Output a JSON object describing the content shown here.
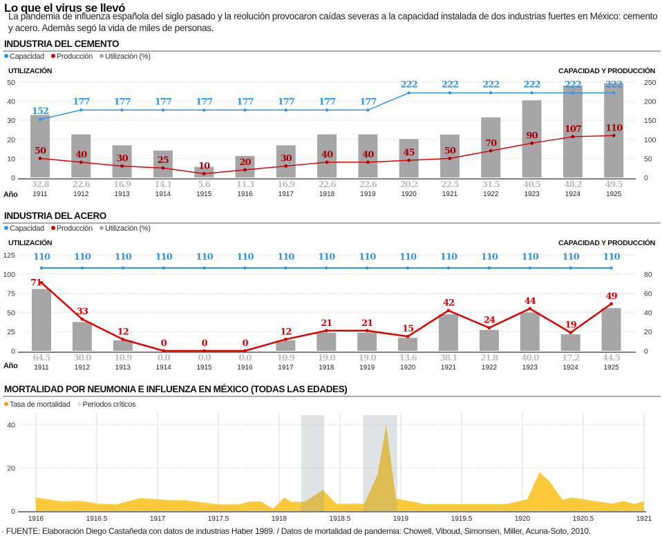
{
  "header": {
    "title": "Lo que el virus se llevó",
    "subtitle": "La pandemia de influenza española del siglo pasado y la reolución provocaron caídas severas a la capacidad instalada de dos industrias fuertes en México: cemento y acero.  Además segó la vida de miles de personas."
  },
  "colors": {
    "capacity": "#2b95ee",
    "production": "#e00000",
    "production_label_cement": "#a80000",
    "utilization": "#a6a6a6",
    "mortality": "#fcc93a",
    "critical": "#dde2e2"
  },
  "chart_data": [
    {
      "type": "bar+line",
      "title": "INDUSTRIA DEL CEMENTO",
      "legend": [
        "Capacidad",
        "Producción",
        "Utilización (%)"
      ],
      "ylabel_left": "UTILIZACIÓN",
      "ylabel_right": "CAPACIDAD Y PRODUCCIÓN",
      "xlabel": "Año",
      "ylim_left": [
        0,
        50
      ],
      "yticks_left": [
        0,
        10,
        20,
        30,
        40,
        50
      ],
      "ylim_right": [
        0,
        250
      ],
      "yticks_right": [
        0,
        50,
        100,
        150,
        200,
        250
      ],
      "categories": [
        "1911",
        "1912",
        "1913",
        "1914",
        "1915",
        "1916",
        "1917",
        "1918",
        "1919",
        "1920",
        "1921",
        "1922",
        "1923",
        "1924",
        "1925"
      ],
      "series": [
        {
          "name": "Capacidad",
          "axis": "right",
          "values": [
            152,
            177,
            177,
            177,
            177,
            177,
            177,
            177,
            177,
            222,
            222,
            222,
            222,
            222,
            222
          ]
        },
        {
          "name": "Producción",
          "axis": "right",
          "values": [
            50,
            40,
            30,
            25,
            10,
            20,
            30,
            40,
            40,
            45,
            50,
            70,
            90,
            107,
            110
          ]
        },
        {
          "name": "Utilización (%)",
          "axis": "left",
          "values": [
            32.8,
            22.6,
            16.9,
            14.1,
            5.6,
            11.3,
            16.9,
            22.6,
            22.6,
            20.2,
            22.5,
            31.5,
            40.5,
            48.2,
            49.5
          ]
        }
      ],
      "utilization_labels": [
        "32.8",
        "22.6",
        "16.9",
        "14.1",
        "5.6",
        "11.3",
        "16.9",
        "22.6",
        "22.6",
        "20.2",
        "22.5",
        "31.5",
        "40.5",
        "48.2",
        "49.5"
      ]
    },
    {
      "type": "bar+line",
      "title": "INDUSTRIA DEL ACERO",
      "legend": [
        "Capacidad",
        "Producción",
        "Utilización (%)"
      ],
      "ylabel_left": "UTILIZACIÓN",
      "ylabel_right": "CAPACIDAD Y PRODUCCIÓN",
      "xlabel": "Año",
      "ylim_left": [
        0,
        125
      ],
      "yticks_left": [
        0,
        25,
        50,
        75,
        100,
        125
      ],
      "ylim_right": [
        0,
        100
      ],
      "yticks_right": [
        0,
        20,
        40,
        60,
        80
      ],
      "categories": [
        "1911",
        "1912",
        "1913",
        "1914",
        "1915",
        "1916",
        "1917",
        "1918",
        "1919",
        "1920",
        "1921",
        "1922",
        "1923",
        "1924",
        "1925"
      ],
      "series": [
        {
          "name": "Capacidad",
          "axis": "right",
          "values": [
            110,
            110,
            110,
            110,
            110,
            110,
            110,
            110,
            110,
            110,
            110,
            110,
            110,
            110,
            110
          ]
        },
        {
          "name": "Producción",
          "axis": "right",
          "values": [
            71,
            33,
            12,
            0,
            0,
            0,
            12,
            21,
            21,
            15,
            42,
            24,
            44,
            19,
            49
          ]
        },
        {
          "name": "Utilización (%)",
          "axis": "right",
          "values": [
            64.5,
            30.0,
            10.9,
            0.0,
            0.0,
            0.0,
            10.9,
            19.0,
            19.0,
            13.6,
            38.1,
            21.8,
            40.0,
            17.2,
            44.5
          ]
        }
      ],
      "utilization_labels": [
        "64.5",
        "30.0",
        "10.9",
        "0.0",
        "0.0",
        "0.0",
        "10.9",
        "19.0",
        "19.0",
        "13.6",
        "38.1",
        "21.8",
        "40.0",
        "17.2",
        "44.5"
      ]
    },
    {
      "type": "area",
      "title": "MORTALIDAD POR NEUMONIA E INFLUENZA EN MÉXICO (TODAS LAS EDADES)",
      "legend": [
        "Tasa de mortalidad",
        "Períodos críticos"
      ],
      "xlim": [
        1916,
        1921
      ],
      "xticks": [
        "1916",
        "1916.5",
        "1917",
        "1917.5",
        "1918",
        "1918.5",
        "1919",
        "1919.5",
        "1920",
        "1920.5",
        "1921"
      ],
      "ylim": [
        0,
        45
      ],
      "yticks": [
        0,
        20,
        40
      ],
      "grid": true,
      "critical_periods": [
        [
          1918.18,
          1918.37
        ],
        [
          1918.69,
          1918.97
        ]
      ],
      "series": [
        {
          "name": "Tasa de mortalidad",
          "points": [
            [
              1916.0,
              6.3
            ],
            [
              1916.22,
              4.4
            ],
            [
              1916.37,
              4.7
            ],
            [
              1916.51,
              3.4
            ],
            [
              1916.66,
              3.1
            ],
            [
              1916.86,
              6.0
            ],
            [
              1917.0,
              5.5
            ],
            [
              1917.1,
              5.0
            ],
            [
              1917.23,
              5.0
            ],
            [
              1917.5,
              3.1
            ],
            [
              1917.67,
              3.1
            ],
            [
              1917.76,
              4.4
            ],
            [
              1917.85,
              4.4
            ],
            [
              1917.95,
              1.0
            ],
            [
              1918.04,
              6.3
            ],
            [
              1918.1,
              4.3
            ],
            [
              1918.21,
              4.3
            ],
            [
              1918.36,
              9.8
            ],
            [
              1918.47,
              3.4
            ],
            [
              1918.7,
              3.4
            ],
            [
              1918.81,
              17
            ],
            [
              1918.88,
              40
            ],
            [
              1918.96,
              5.8
            ],
            [
              1919.2,
              3.2
            ],
            [
              1919.87,
              3.2
            ],
            [
              1920.04,
              5.5
            ],
            [
              1920.14,
              18
            ],
            [
              1920.22,
              14
            ],
            [
              1920.33,
              5.2
            ],
            [
              1920.4,
              6.3
            ],
            [
              1920.5,
              5.5
            ],
            [
              1920.74,
              3.4
            ],
            [
              1920.83,
              4.7
            ],
            [
              1920.92,
              3.2
            ],
            [
              1921.0,
              4.7
            ]
          ]
        }
      ]
    }
  ],
  "footer": "· FUENTE: Elaboración Diego Castañeda con datos de  industrias Haber 1989. / Datos de mortalidad de pandemia: Chowell, Viboud, Simonsen,  Miller, Acuna-Soto, 2010."
}
